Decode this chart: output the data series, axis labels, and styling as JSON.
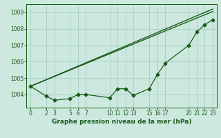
{
  "title": "Graphe pression niveau de la mer (hPa)",
  "background_color": "#cce8df",
  "grid_color": "#aad4c8",
  "line_color": "#1a5c1a",
  "x_ticks": [
    0,
    2,
    3,
    5,
    6,
    7,
    10,
    11,
    12,
    13,
    15,
    16,
    17,
    20,
    21,
    22,
    23
  ],
  "xlim": [
    -0.5,
    23.5
  ],
  "ylim": [
    1003.2,
    1009.5
  ],
  "y_ticks": [
    1004,
    1005,
    1006,
    1007,
    1008,
    1009
  ],
  "series1_x": [
    0,
    2,
    3,
    5,
    6,
    7,
    10,
    11,
    12,
    13,
    15,
    16,
    17,
    20,
    21,
    22,
    23
  ],
  "series1_y": [
    1004.5,
    1003.9,
    1003.65,
    1003.75,
    1004.0,
    1004.0,
    1003.8,
    1004.35,
    1004.35,
    1003.95,
    1004.35,
    1005.2,
    1005.9,
    1007.0,
    1007.8,
    1008.25,
    1008.55
  ],
  "series2_x": [
    0,
    23
  ],
  "series2_y": [
    1004.5,
    1009.05
  ],
  "series3_x": [
    0,
    23
  ],
  "series3_y": [
    1004.5,
    1009.2
  ],
  "tick_fontsize": 5.5,
  "xlabel_fontsize": 6.5
}
